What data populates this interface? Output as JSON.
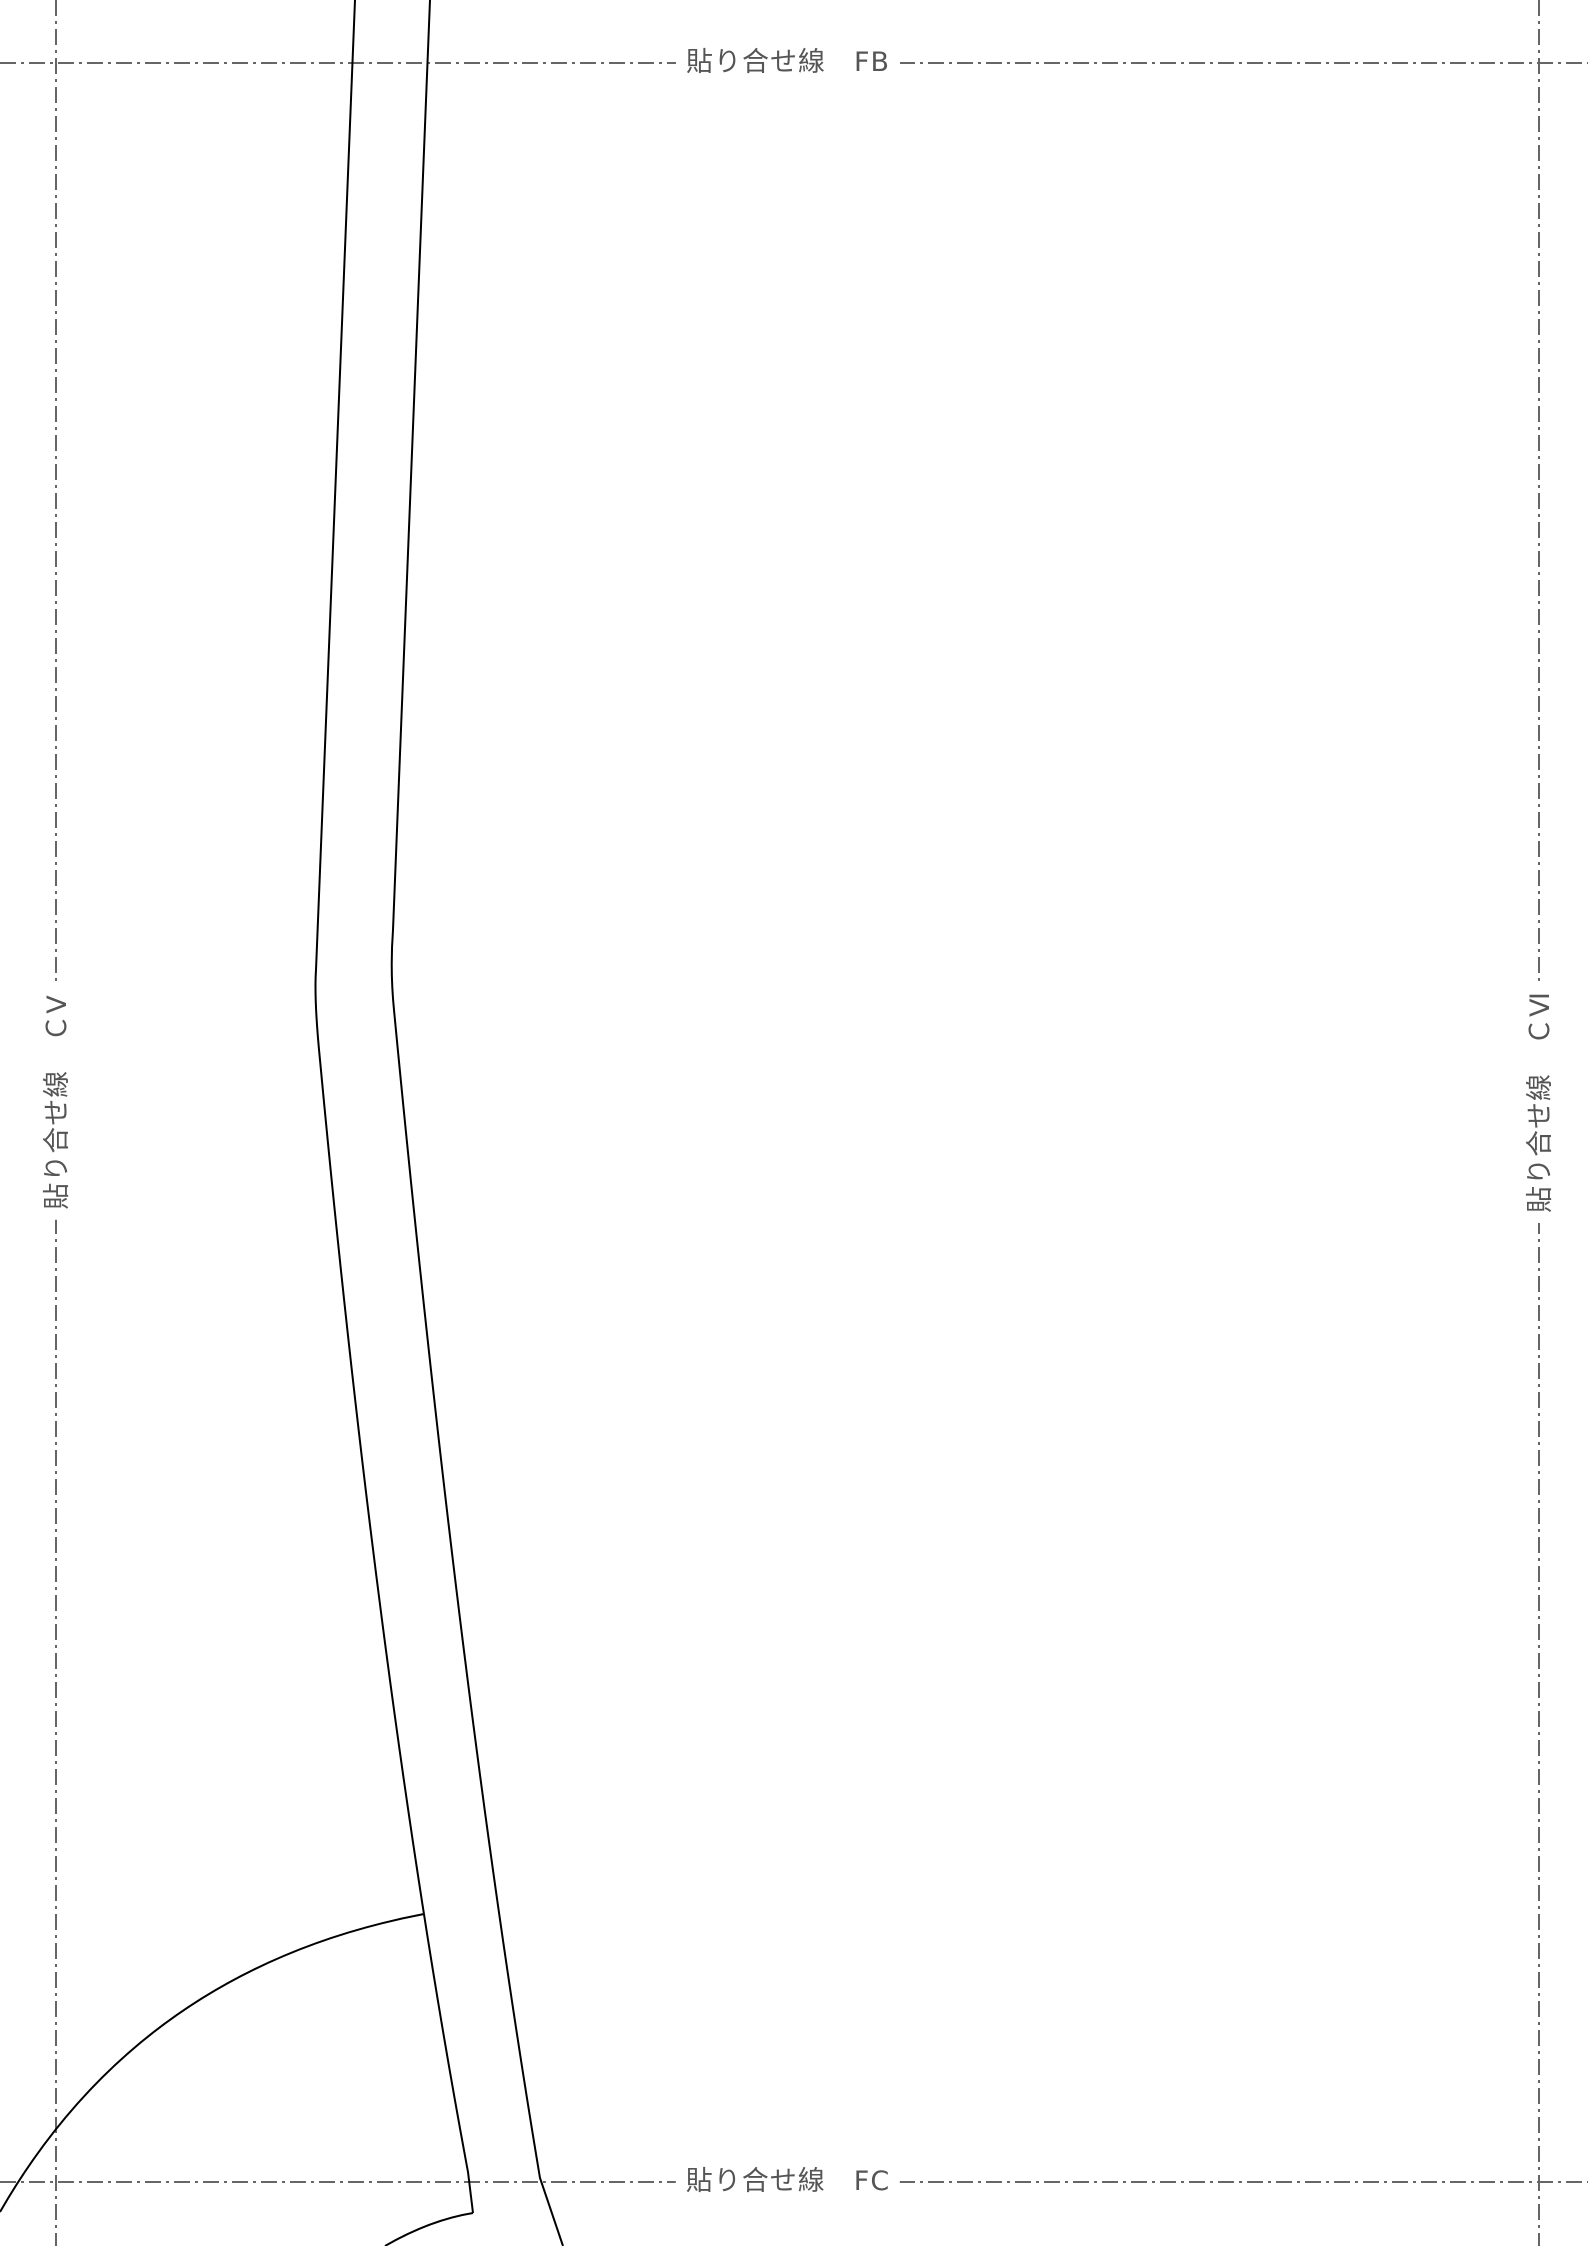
{
  "labels": {
    "top": "貼り合せ線　FB",
    "bottom": "貼り合せ線　FC",
    "left": "貼り合せ線　ＣⅤ",
    "right": "貼り合せ線　ＣⅥ"
  },
  "colors": {
    "guide_line": "#666666",
    "outline": "#000000",
    "label_text": "#555555"
  }
}
